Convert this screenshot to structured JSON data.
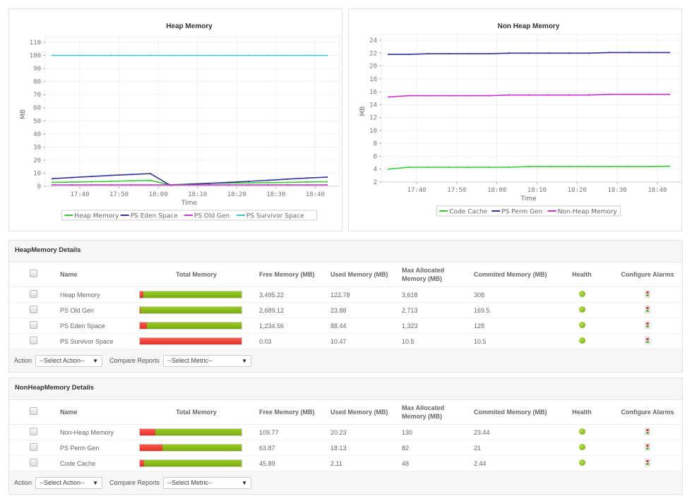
{
  "charts": [
    {
      "title": "Heap Memory",
      "ylabel": "MB",
      "xlabel": "Time",
      "yticks": [
        "0",
        "10",
        "20",
        "30",
        "40",
        "50",
        "60",
        "70",
        "80",
        "90",
        "100",
        "110"
      ],
      "xticks": [
        "17:40",
        "17:50",
        "18:00",
        "18:10",
        "18:20",
        "18:30",
        "18:40"
      ],
      "legend": [
        "Heap Memory",
        "PS Eden Space",
        "PS Old Gen",
        "PS Survivor Space"
      ]
    },
    {
      "title": "Non Heap Memory",
      "ylabel": "MB",
      "xlabel": "Time",
      "yticks": [
        "2",
        "4",
        "6",
        "8",
        "10",
        "12",
        "14",
        "16",
        "18",
        "20",
        "22",
        "24"
      ],
      "xticks": [
        "17:40",
        "17:50",
        "18:00",
        "18:10",
        "18:20",
        "18:30",
        "18:40"
      ],
      "legend": [
        "Code Cache",
        "PS Perm Gen",
        "Non-Heap Memory"
      ]
    }
  ],
  "chart_data": [
    {
      "type": "line",
      "title": "Heap Memory",
      "xlabel": "Time",
      "ylabel": "MB",
      "ylim": [
        0,
        110
      ],
      "x": [
        "17:33",
        "17:38",
        "17:43",
        "17:48",
        "17:53",
        "17:58",
        "18:03",
        "18:08",
        "18:13",
        "18:18",
        "18:23",
        "18:28",
        "18:33",
        "18:38",
        "18:43"
      ],
      "xtick_labels": [
        "17:40",
        "17:50",
        "18:00",
        "18:10",
        "18:20",
        "18:30",
        "18:40"
      ],
      "grid": true,
      "legend_position": "bottom",
      "series": [
        {
          "name": "Heap Memory",
          "color": "#33cc33",
          "values": [
            3.0,
            3.2,
            3.5,
            3.8,
            4.2,
            4.5,
            1.2,
            1.8,
            2.3,
            2.5,
            2.6,
            2.8,
            3.0,
            3.3,
            3.5
          ]
        },
        {
          "name": "PS Eden Space",
          "color": "#333399",
          "values": [
            5.8,
            6.7,
            7.5,
            8.3,
            9.0,
            9.7,
            0.8,
            1.5,
            2.2,
            3.0,
            3.8,
            4.6,
            5.5,
            6.3,
            7.0
          ]
        },
        {
          "name": "PS Old Gen",
          "color": "#cc33cc",
          "values": [
            1.0,
            1.0,
            1.0,
            1.0,
            1.0,
            1.0,
            1.0,
            1.0,
            1.0,
            1.0,
            1.0,
            1.0,
            1.0,
            1.0,
            1.0
          ]
        },
        {
          "name": "PS Survivor Space",
          "color": "#33cccc",
          "values": [
            100,
            100,
            100,
            100,
            100,
            100,
            100,
            100,
            100,
            100,
            100,
            100,
            100,
            100,
            100
          ]
        }
      ]
    },
    {
      "type": "line",
      "title": "Non Heap Memory",
      "xlabel": "Time",
      "ylabel": "MB",
      "ylim": [
        2,
        24
      ],
      "x": [
        "17:33",
        "17:38",
        "17:43",
        "17:48",
        "17:53",
        "17:58",
        "18:03",
        "18:08",
        "18:13",
        "18:18",
        "18:23",
        "18:28",
        "18:33",
        "18:38",
        "18:43"
      ],
      "xtick_labels": [
        "17:40",
        "17:50",
        "18:00",
        "18:10",
        "18:20",
        "18:30",
        "18:40"
      ],
      "grid": true,
      "legend_position": "bottom",
      "series": [
        {
          "name": "Code Cache",
          "color": "#33cc33",
          "values": [
            4.0,
            4.3,
            4.3,
            4.3,
            4.3,
            4.3,
            4.3,
            4.4,
            4.4,
            4.4,
            4.4,
            4.4,
            4.4,
            4.4,
            4.45
          ]
        },
        {
          "name": "PS Perm Gen",
          "color": "#333399",
          "values": [
            21.8,
            21.8,
            21.9,
            21.9,
            21.9,
            21.9,
            22.0,
            22.0,
            22.0,
            22.0,
            22.0,
            22.1,
            22.1,
            22.1,
            22.1
          ]
        },
        {
          "name": "Non-Heap Memory",
          "color": "#cc33cc",
          "values": [
            15.2,
            15.4,
            15.4,
            15.4,
            15.4,
            15.4,
            15.5,
            15.5,
            15.5,
            15.5,
            15.5,
            15.6,
            15.6,
            15.6,
            15.6
          ]
        }
      ]
    }
  ],
  "heap_details": {
    "title": "HeapMemory Details",
    "columns": [
      "Name",
      "Total Memory",
      "Free Memory  (MB)",
      "Used Memory  (MB)",
      "Max Allocated Memory  (MB)",
      "Commited Memory  (MB)",
      "Health",
      "Configure Alarms"
    ],
    "rows": [
      {
        "name": "Heap Memory",
        "used_pct": 3.4,
        "free": "3,495.22",
        "used": "122.78",
        "max": "3,618",
        "committed": "308",
        "health": "green"
      },
      {
        "name": "PS Old Gen",
        "used_pct": 0.9,
        "free": "2,689.12",
        "used": "23.88",
        "max": "2,713",
        "committed": "169.5",
        "health": "green"
      },
      {
        "name": "PS Eden Space",
        "used_pct": 6.7,
        "free": "1,234.56",
        "used": "88.44",
        "max": "1,323",
        "committed": "128",
        "health": "green"
      },
      {
        "name": "PS Survivor Space",
        "used_pct": 99.7,
        "free": "0.03",
        "used": "10.47",
        "max": "10.5",
        "committed": "10.5",
        "health": "green"
      }
    ],
    "action_label": "Action",
    "action_select": "--Select Action--",
    "compare_label": "Compare Reports",
    "compare_select": "--Select Metric--"
  },
  "nonheap_details": {
    "title": "NonHeapMemory Details",
    "columns": [
      "Name",
      "Total Memory",
      "Free Memory  (MB)",
      "Used Memory  (MB)",
      "Max Allocated Memory  (MB)",
      "Commited Memory  (MB)",
      "Health",
      "Configure Alarms"
    ],
    "rows": [
      {
        "name": "Non-Heap Memory",
        "used_pct": 15.6,
        "free": "109.77",
        "used": "20.23",
        "max": "130",
        "committed": "23.44",
        "health": "green"
      },
      {
        "name": "PS Perm Gen",
        "used_pct": 22.1,
        "free": "63.87",
        "used": "18.13",
        "max": "82",
        "committed": "21",
        "health": "green"
      },
      {
        "name": "Code Cache",
        "used_pct": 4.4,
        "free": "45.89",
        "used": "2.11",
        "max": "48",
        "committed": "2.44",
        "health": "green"
      }
    ],
    "action_label": "Action",
    "action_select": "--Select Action--",
    "compare_label": "Compare Reports",
    "compare_select": "--Select Metric--"
  }
}
